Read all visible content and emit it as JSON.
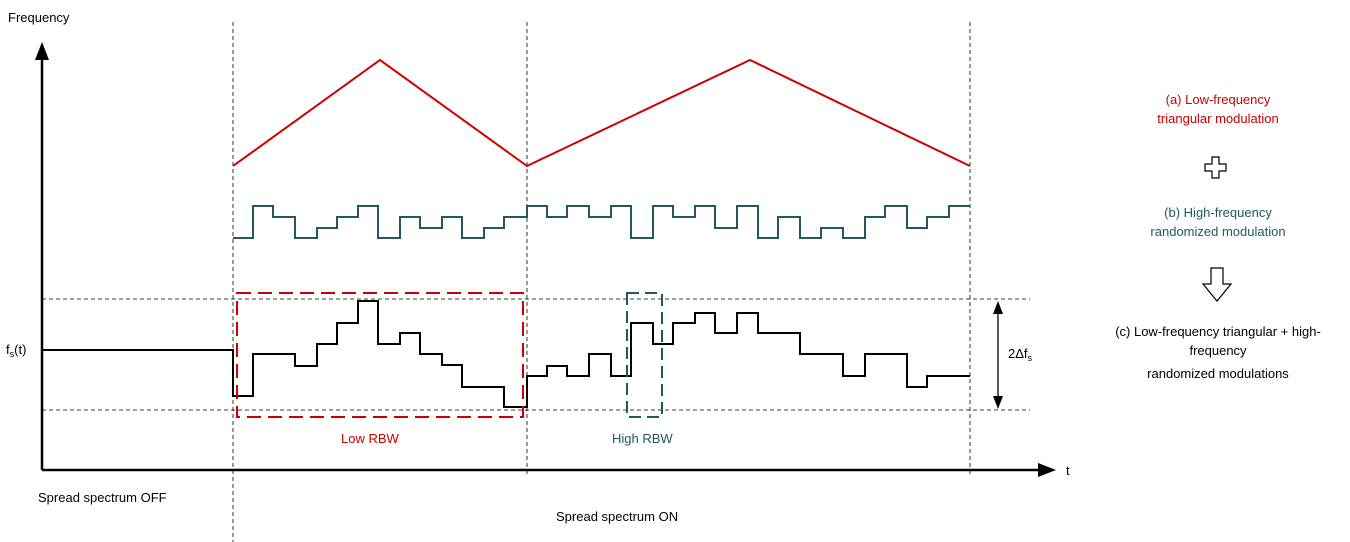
{
  "axes": {
    "y_label": "Frequency",
    "x_label": "t",
    "fs_label_base": "f",
    "fs_label_sub": "s",
    "fs_label_tail": "(t)",
    "delta_label_prefix": "2Δf",
    "delta_label_sub": "s"
  },
  "regions": {
    "off_label": "Spread spectrum OFF",
    "on_label": "Spread spectrum ON"
  },
  "boxes": {
    "low_rbw": "Low RBW",
    "high_rbw": "High RBW"
  },
  "legend": {
    "a_line1": "(a)  Low-frequency",
    "a_line2": "triangular modulation",
    "b_line1": "(b)  High-frequency",
    "b_line2": "randomized modulation",
    "c_line1": "(c)  Low-frequency triangular + high-",
    "c_line2": "frequency",
    "c_line3": "randomized modulations"
  },
  "colors": {
    "triangular": "#cc0000",
    "randomized": "#1f5a63",
    "combined": "#000000"
  },
  "icons": {
    "plus": "plus-outline-icon",
    "arrow": "down-arrow-outline-icon"
  }
}
